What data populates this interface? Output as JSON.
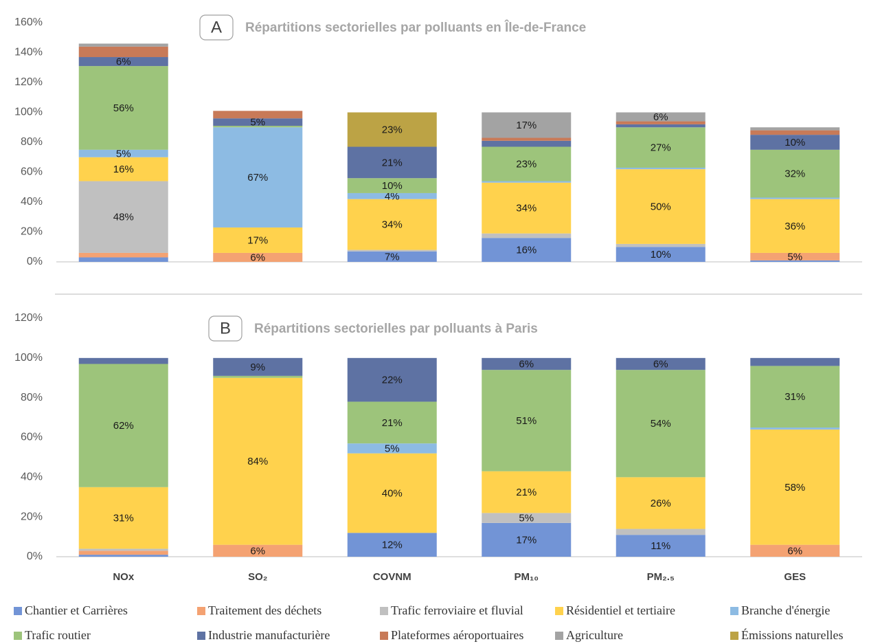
{
  "chart_data": [
    {
      "type": "bar",
      "panel_label": "A",
      "title": "Répartitions sectorielles par polluants en Île-de-France",
      "ylim": [
        0,
        160
      ],
      "yticks": [
        {
          "value": 0,
          "label": "0%"
        },
        {
          "value": 20,
          "label": "20%"
        },
        {
          "value": 40,
          "label": "40%"
        },
        {
          "value": 60,
          "label": "60%"
        },
        {
          "value": 80,
          "label": "80%"
        },
        {
          "value": 100,
          "label": "100%"
        },
        {
          "value": 120,
          "label": "120%"
        },
        {
          "value": 140,
          "label": "140%"
        },
        {
          "value": 160,
          "label": "160%"
        }
      ],
      "series": [
        {
          "color": "#7294d6",
          "values": [
            3,
            0,
            7,
            16,
            10,
            1
          ],
          "value_labels": [
            null,
            null,
            "7%",
            "16%",
            "10%",
            null
          ]
        },
        {
          "color": "#f4a272",
          "values": [
            3,
            6,
            0,
            0,
            0,
            5
          ],
          "value_labels": [
            null,
            "6%",
            null,
            null,
            null,
            "5%"
          ]
        },
        {
          "color": "#c0c0c0",
          "values": [
            48,
            0,
            1,
            3,
            2,
            0
          ],
          "value_labels": [
            "48%",
            null,
            null,
            null,
            null,
            null
          ]
        },
        {
          "color": "#ffd24d",
          "values": [
            16,
            17,
            34,
            34,
            50,
            36
          ],
          "value_labels": [
            "16%",
            "17%",
            "34%",
            "34%",
            "50%",
            "36%"
          ]
        },
        {
          "color": "#8dbbe3",
          "values": [
            5,
            67,
            4,
            1,
            1,
            1
          ],
          "value_labels": [
            "5%",
            "67%",
            "4%",
            null,
            null,
            null
          ]
        },
        {
          "color": "#9dc47b",
          "values": [
            56,
            1,
            10,
            23,
            27,
            32
          ],
          "value_labels": [
            "56%",
            null,
            "10%",
            "23%",
            "27%",
            "32%"
          ]
        },
        {
          "color": "#5e72a3",
          "values": [
            6,
            5,
            21,
            4,
            2,
            10
          ],
          "value_labels": [
            "6%",
            "5%",
            "21%",
            null,
            null,
            "10%"
          ]
        },
        {
          "color": "#c87a58",
          "values": [
            7,
            5,
            0,
            2,
            2,
            3
          ],
          "value_labels": [
            null,
            null,
            null,
            null,
            null,
            null
          ]
        },
        {
          "color": "#a3a3a3",
          "values": [
            2,
            0,
            0,
            17,
            6,
            2
          ],
          "value_labels": [
            null,
            null,
            null,
            "17%",
            "6%",
            null
          ]
        },
        {
          "color": "#bca345",
          "values": [
            0,
            0,
            23,
            0,
            0,
            0
          ],
          "value_labels": [
            null,
            null,
            "23%",
            null,
            null,
            null
          ]
        }
      ]
    },
    {
      "type": "bar",
      "panel_label": "B",
      "title": "Répartitions sectorielles par polluants à Paris",
      "categories": [
        "NOx",
        "SO₂",
        "COVNM",
        "PM₁₀",
        "PM₂.₅",
        "GES"
      ],
      "ylim": [
        0,
        120
      ],
      "yticks": [
        {
          "value": 0,
          "label": "0%"
        },
        {
          "value": 20,
          "label": "20%"
        },
        {
          "value": 40,
          "label": "40%"
        },
        {
          "value": 60,
          "label": "60%"
        },
        {
          "value": 80,
          "label": "80%"
        },
        {
          "value": 100,
          "label": "100%"
        },
        {
          "value": 120,
          "label": "120%"
        }
      ],
      "series": [
        {
          "name": "Chantier et Carrières",
          "color": "#7294d6",
          "values": [
            1,
            0,
            12,
            17,
            11,
            0
          ],
          "value_labels": [
            null,
            null,
            "12%",
            "17%",
            "11%",
            null
          ]
        },
        {
          "name": "Traitement des déchets",
          "color": "#f4a272",
          "values": [
            2,
            6,
            0,
            0,
            0,
            6
          ],
          "value_labels": [
            null,
            "6%",
            null,
            null,
            null,
            "6%"
          ]
        },
        {
          "name": "Trafic ferroviaire et fluvial",
          "color": "#c0c0c0",
          "values": [
            1,
            0,
            0,
            5,
            3,
            0
          ],
          "value_labels": [
            null,
            null,
            null,
            "5%",
            null,
            null
          ]
        },
        {
          "name": "Résidentiel et tertiaire",
          "color": "#ffd24d",
          "values": [
            31,
            84,
            40,
            21,
            26,
            58
          ],
          "value_labels": [
            "31%",
            "84%",
            "40%",
            "21%",
            "26%",
            "58%"
          ]
        },
        {
          "name": "Branche d'énergie",
          "color": "#8dbbe3",
          "values": [
            0,
            0,
            5,
            0,
            0,
            1
          ],
          "value_labels": [
            null,
            null,
            "5%",
            null,
            null,
            null
          ]
        },
        {
          "name": "Trafic routier",
          "color": "#9dc47b",
          "values": [
            62,
            1,
            21,
            51,
            54,
            31
          ],
          "value_labels": [
            "62%",
            null,
            "21%",
            "51%",
            "54%",
            "31%"
          ]
        },
        {
          "name": "Industrie manufacturière",
          "color": "#5e72a3",
          "values": [
            3,
            9,
            22,
            6,
            6,
            4
          ],
          "value_labels": [
            null,
            "9%",
            "22%",
            "6%",
            "6%",
            null
          ]
        },
        {
          "name": "Plateformes aéroportuaires",
          "color": "#c87a58",
          "values": [
            0,
            0,
            0,
            0,
            0,
            0
          ],
          "value_labels": [
            null,
            null,
            null,
            null,
            null,
            null
          ]
        },
        {
          "name": "Agriculture",
          "color": "#a3a3a3",
          "values": [
            0,
            0,
            0,
            0,
            0,
            0
          ],
          "value_labels": [
            null,
            null,
            null,
            null,
            null,
            null
          ]
        },
        {
          "name": "Émissions naturelles",
          "color": "#bca345",
          "values": [
            0,
            0,
            0,
            0,
            0,
            0
          ],
          "value_labels": [
            null,
            null,
            null,
            null,
            null,
            null
          ]
        }
      ]
    }
  ]
}
